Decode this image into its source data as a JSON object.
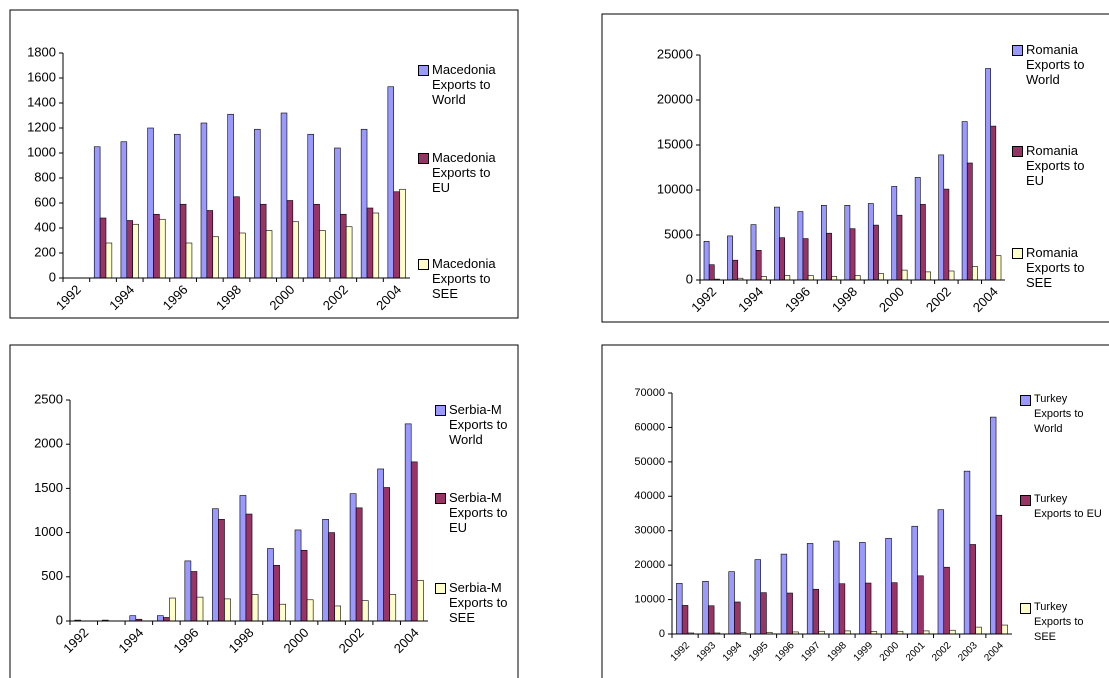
{
  "chart_data": [
    {
      "type": "bar",
      "categories": [
        "1992",
        null,
        "1994",
        null,
        "1996",
        null,
        "1998",
        null,
        "2000",
        null,
        "2002",
        null,
        "2004"
      ],
      "series": [
        {
          "name": "Macedonia Exports to World",
          "color": "#9999ff",
          "values": [
            null,
            1050,
            1090,
            1200,
            1150,
            1240,
            1310,
            1190,
            1320,
            1150,
            1040,
            1190,
            1530
          ]
        },
        {
          "name": "Macedonia Exports to EU",
          "color": "#993366",
          "values": [
            null,
            480,
            460,
            510,
            590,
            540,
            650,
            590,
            620,
            590,
            510,
            560,
            690
          ]
        },
        {
          "name": "Macedonia Exports to SEE",
          "color": "#ffffcc",
          "values": [
            null,
            280,
            430,
            470,
            280,
            330,
            360,
            380,
            450,
            380,
            410,
            520,
            710
          ]
        }
      ],
      "ylim": [
        0,
        1800
      ],
      "yticks": [
        0,
        200,
        400,
        600,
        800,
        1000,
        1200,
        1400,
        1600,
        1800
      ],
      "grid": false,
      "legend": "right"
    },
    {
      "type": "bar",
      "categories": [
        "1992",
        null,
        "1994",
        null,
        "1996",
        null,
        "1998",
        null,
        "2000",
        null,
        "2002",
        null,
        "2004"
      ],
      "series": [
        {
          "name": "Romania Exports to World",
          "color": "#9999ff",
          "values": [
            4300,
            4900,
            6150,
            8100,
            7600,
            8300,
            8300,
            8500,
            10400,
            11400,
            13900,
            17600,
            23500
          ]
        },
        {
          "name": "Romania Exports to EU",
          "color": "#993366",
          "values": [
            1700,
            2200,
            3300,
            4700,
            4600,
            5200,
            5700,
            6100,
            7200,
            8400,
            10100,
            13000,
            17100
          ]
        },
        {
          "name": "Romania Exports to SEE",
          "color": "#ffffcc",
          "values": [
            100,
            200,
            400,
            500,
            500,
            400,
            500,
            700,
            1100,
            900,
            1000,
            1500,
            2700
          ]
        }
      ],
      "ylim": [
        0,
        25000
      ],
      "yticks": [
        0,
        5000,
        10000,
        15000,
        20000,
        25000
      ],
      "grid": false,
      "legend": "right"
    },
    {
      "type": "bar",
      "categories": [
        "1992",
        null,
        "1994",
        null,
        "1996",
        null,
        "1998",
        null,
        "2000",
        null,
        "2002",
        null,
        "2004"
      ],
      "series": [
        {
          "name": "Serbia-M Exports to World",
          "color": "#9999ff",
          "values": [
            10,
            10,
            60,
            60,
            680,
            1270,
            1420,
            820,
            1030,
            1150,
            1440,
            1720,
            2230
          ]
        },
        {
          "name": "Serbia-M Exports to EU",
          "color": "#993366",
          "values": [
            0,
            0,
            20,
            40,
            560,
            1150,
            1210,
            630,
            800,
            1000,
            1280,
            1510,
            1800
          ]
        },
        {
          "name": "Serbia-M Exports to SEE",
          "color": "#ffffcc",
          "values": [
            0,
            0,
            0,
            260,
            270,
            250,
            300,
            190,
            240,
            170,
            230,
            300,
            460
          ]
        }
      ],
      "ylim": [
        0,
        2500
      ],
      "yticks": [
        0,
        500,
        1000,
        1500,
        2000,
        2500
      ],
      "grid": false,
      "legend": "right"
    },
    {
      "type": "bar",
      "categories": [
        "1992",
        "1993",
        "1994",
        "1995",
        "1996",
        "1997",
        "1998",
        "1999",
        "2000",
        "2001",
        "2002",
        "2003",
        "2004"
      ],
      "series": [
        {
          "name": "Turkey Exports to World",
          "color": "#9999ff",
          "values": [
            14700,
            15300,
            18100,
            21600,
            23200,
            26300,
            27000,
            26600,
            27800,
            31300,
            36100,
            47300,
            63000
          ]
        },
        {
          "name": "Turkey Exports to EU",
          "color": "#993366",
          "values": [
            8300,
            8200,
            9300,
            12000,
            11900,
            13000,
            14600,
            14800,
            14900,
            16900,
            19400,
            26000,
            34500
          ]
        },
        {
          "name": "Turkey Exports to SEE",
          "color": "#ffffcc",
          "values": [
            300,
            300,
            400,
            500,
            600,
            800,
            900,
            700,
            800,
            900,
            1100,
            2000,
            2600
          ]
        }
      ],
      "ylim": [
        0,
        70000
      ],
      "yticks": [
        0,
        10000,
        20000,
        30000,
        40000,
        50000,
        60000,
        70000
      ],
      "grid": false,
      "legend": "right"
    }
  ]
}
